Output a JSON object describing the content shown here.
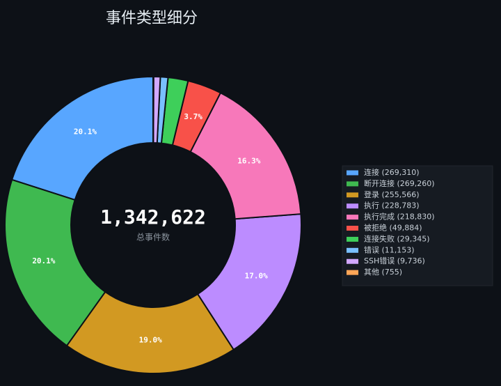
{
  "chart_data": {
    "type": "donut",
    "title": "事件类型细分",
    "categories": [
      "连接 (269,310)",
      "断开连接 (269,260)",
      "登录 (255,566)",
      "执行 (228,783)",
      "执行完成 (218,830)",
      "被拒绝 (49,884)",
      "连接失败 (29,345)",
      "错误 (11,153)",
      "SSH错误 (9,736)",
      "其他 (755)"
    ],
    "values": [
      269310,
      269260,
      255566,
      228783,
      218830,
      49884,
      29345,
      11153,
      9736,
      755
    ],
    "value_labels": [
      "20.1%",
      "20.1%",
      "19.0%",
      "17.0%",
      "16.3%",
      "3.7%",
      null,
      null,
      null,
      null
    ],
    "colors": [
      "#58a6ff",
      "#3fb950",
      "#d29922",
      "#bc8cff",
      "#f778ba",
      "#f85149",
      "#3ecf5a",
      "#79c0ff",
      "#d2a8ff",
      "#ffa657"
    ],
    "center_label": "1,342,622",
    "center_sublabel": "总事件数",
    "legend": "right"
  }
}
